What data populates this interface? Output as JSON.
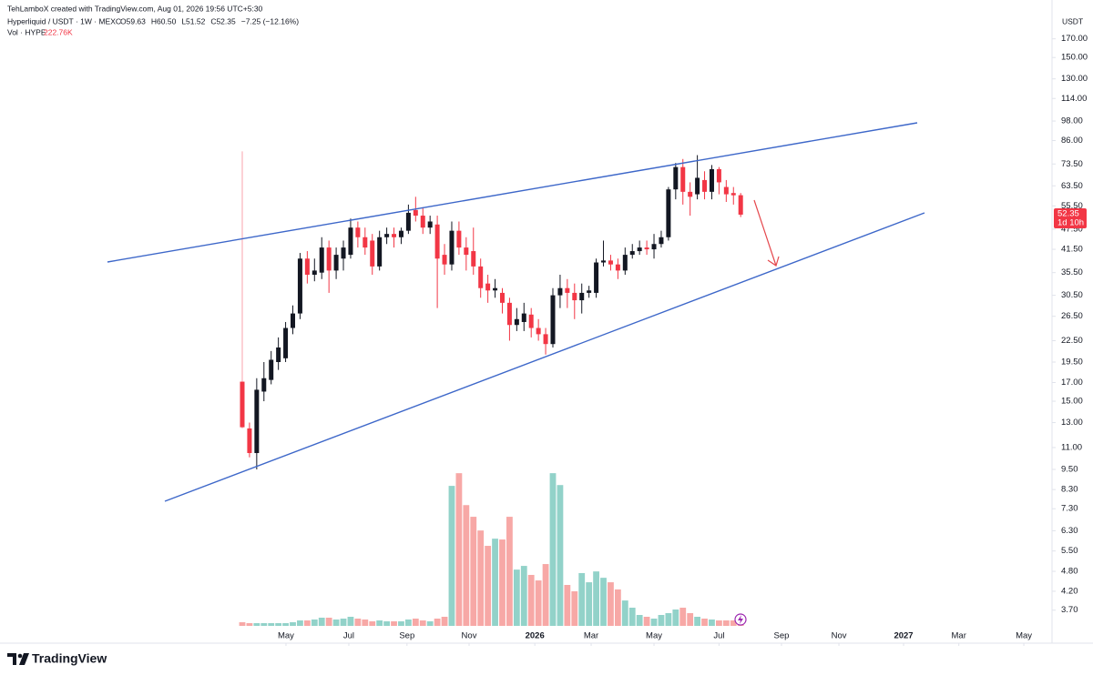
{
  "header": {
    "credit": "TehLamboX created with TradingView.com, Aug 01, 2026 19:56 UTC+5:30",
    "symbol": "Hyperliquid / USDT · 1W · MEXC",
    "ohlc": [
      "O59.63",
      "H60.50",
      "L51.52",
      "C52.35",
      "−7.25 (−12.16%)"
    ]
  },
  "footer": {
    "brand": "TradingView"
  },
  "chart_data": {
    "type": "candlestick",
    "currency": "USDT",
    "countdown": "1d 10h",
    "open": [
      17.1,
      12.5,
      10.6,
      16,
      17.3,
      19.5,
      20,
      24.5,
      27,
      39,
      35,
      35.5,
      42,
      36,
      39,
      40,
      48,
      45,
      44,
      37,
      45,
      46,
      45,
      47,
      54,
      52,
      48,
      49,
      40,
      37.5,
      47,
      42,
      41,
      37,
      33,
      31.5,
      31,
      29,
      25,
      25.5,
      26.8,
      24.5,
      23.5,
      22,
      30.5,
      32,
      31,
      29.5,
      31,
      31,
      38,
      38.5,
      37.5,
      36,
      40,
      41,
      42,
      41.5,
      43,
      45,
      62,
      72,
      61,
      60,
      66,
      61,
      71,
      63,
      60.5,
      59.63
    ],
    "high": [
      80,
      13,
      17.5,
      19.5,
      21,
      23,
      25.5,
      28.5,
      40.5,
      41,
      39,
      45,
      44,
      42,
      44,
      51,
      50,
      48,
      46,
      47,
      48,
      48,
      48,
      56,
      59,
      55,
      52,
      52,
      43,
      50,
      50,
      45,
      48,
      39,
      35,
      34,
      32,
      30,
      28,
      29,
      28,
      26,
      24.5,
      32,
      35,
      34,
      33,
      33,
      32.5,
      39,
      44,
      40,
      39,
      42,
      43,
      44,
      44,
      46,
      47,
      63,
      74,
      76,
      65,
      78,
      70,
      73,
      72,
      66,
      63,
      60.5
    ],
    "low": [
      12.5,
      10.3,
      9.5,
      15,
      16.8,
      18.5,
      19.5,
      23.5,
      26,
      33,
      33.5,
      34,
      31,
      34,
      36,
      39,
      42,
      40,
      35,
      36,
      43,
      42,
      43,
      46,
      50,
      46,
      46,
      28,
      35,
      36,
      40,
      36,
      35,
      30,
      29,
      30,
      27,
      22.5,
      24,
      24,
      23,
      22.5,
      20.5,
      21.5,
      28,
      28,
      26,
      27,
      30,
      30,
      37,
      36,
      34,
      35,
      39,
      40,
      40,
      39,
      42,
      44,
      58,
      56,
      52,
      58,
      58,
      58,
      60,
      57,
      56,
      51.52
    ],
    "close": [
      12.6,
      10.6,
      16.2,
      17.5,
      19.8,
      21.5,
      24.5,
      27,
      39,
      35,
      36,
      42,
      36,
      40,
      42,
      48,
      45,
      42,
      37,
      45,
      46,
      45,
      47,
      53,
      52,
      48,
      50,
      39,
      37.5,
      47,
      42,
      40,
      37,
      32,
      31.5,
      32,
      29,
      25,
      26,
      27,
      24.5,
      23.5,
      22,
      30.5,
      32,
      31,
      29.5,
      31,
      31.5,
      38,
      38.5,
      37.5,
      36,
      40,
      41,
      42,
      41.5,
      43,
      45,
      62,
      72,
      61,
      59,
      67,
      61,
      71,
      65,
      60,
      59.6,
      52.35
    ],
    "volume": [
      178,
      133,
      133,
      133,
      133,
      133,
      133,
      178,
      266,
      266,
      311,
      400,
      400,
      311,
      355,
      444,
      355,
      311,
      222,
      266,
      222,
      222,
      222,
      311,
      355,
      266,
      222,
      355,
      444,
      6840,
      7460,
      5900,
      5330,
      4660,
      3910,
      4260,
      4220,
      5330,
      2750,
      2930,
      2490,
      2220,
      3020,
      7460,
      6880,
      2000,
      1690,
      2580,
      2130,
      2660,
      2350,
      2130,
      1780,
      1240,
      888,
      533,
      444,
      355,
      533,
      622,
      800,
      888,
      622,
      444,
      355,
      311,
      266,
      266,
      266,
      222.76
    ],
    "volume_legend": {
      "name": "Vol · HYPE",
      "value": "222.76K"
    },
    "vlim": [
      0,
      8000
    ],
    "up_color": "#131722",
    "down_color": "#f23645",
    "volume_up_color": "#92d2c9",
    "volume_down_color": "#f7a8a6",
    "log_scale": true,
    "ylim": [
      3.29,
      210
    ],
    "yticks": [
      {
        "value": 170,
        "label": "170.00"
      },
      {
        "value": 150,
        "label": "150.00"
      },
      {
        "value": 130,
        "label": "130.00"
      },
      {
        "value": 114,
        "label": "114.00"
      },
      {
        "value": 98,
        "label": "98.00"
      },
      {
        "value": 86,
        "label": "86.00"
      },
      {
        "value": 73.5,
        "label": "73.50"
      },
      {
        "value": 63.5,
        "label": "63.50"
      },
      {
        "value": 55.5,
        "label": "55.50"
      },
      {
        "value": 47.5,
        "label": "47.50"
      },
      {
        "value": 41.5,
        "label": "41.50"
      },
      {
        "value": 35.5,
        "label": "35.50"
      },
      {
        "value": 30.5,
        "label": "30.50"
      },
      {
        "value": 26.5,
        "label": "26.50"
      },
      {
        "value": 22.5,
        "label": "22.50"
      },
      {
        "value": 19.5,
        "label": "19.50"
      },
      {
        "value": 17,
        "label": "17.00"
      },
      {
        "value": 15,
        "label": "15.00"
      },
      {
        "value": 13,
        "label": "13.00"
      },
      {
        "value": 11,
        "label": "11.00"
      },
      {
        "value": 9.5,
        "label": "9.50"
      },
      {
        "value": 8.3,
        "label": "8.30"
      },
      {
        "value": 7.3,
        "label": "7.30"
      },
      {
        "value": 6.3,
        "label": "6.30"
      },
      {
        "value": 5.5,
        "label": "5.50"
      },
      {
        "value": 4.8,
        "label": "4.80"
      },
      {
        "value": 4.2,
        "label": "4.20"
      },
      {
        "value": 3.7,
        "label": "3.70"
      }
    ],
    "xlim": [
      -33.54,
      112.1
    ],
    "xticks": [
      {
        "value": 6.05,
        "label": "May"
      },
      {
        "value": 14.75,
        "label": "Jul"
      },
      {
        "value": 22.8,
        "label": "Sep"
      },
      {
        "value": 31.4,
        "label": "Nov"
      },
      {
        "value": 40.5,
        "label": "2026"
      },
      {
        "value": 48.3,
        "label": "Mar"
      },
      {
        "value": 57.0,
        "label": "May"
      },
      {
        "value": 66.0,
        "label": "Jul"
      },
      {
        "value": 74.65,
        "label": "Sep"
      },
      {
        "value": 82.6,
        "label": "Nov"
      },
      {
        "value": 91.55,
        "label": "2027"
      },
      {
        "value": 99.2,
        "label": "Mar"
      },
      {
        "value": 108.2,
        "label": "May"
      }
    ],
    "grid": false
  }
}
